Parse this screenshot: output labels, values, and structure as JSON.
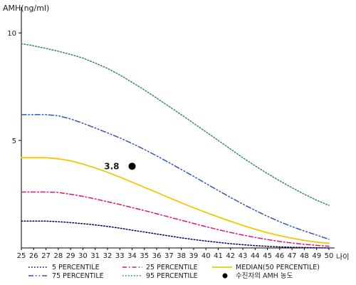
{
  "chart_data": {
    "type": "line",
    "ylabel": "AMH(ng/ml)",
    "xlabel": "나이",
    "x": [
      25,
      26,
      27,
      28,
      29,
      30,
      31,
      32,
      33,
      34,
      35,
      36,
      37,
      38,
      39,
      40,
      41,
      42,
      43,
      44,
      45,
      46,
      47,
      48,
      49,
      50
    ],
    "xlim": [
      25,
      50
    ],
    "ylim": [
      0,
      11.2
    ],
    "yticks": [
      5,
      10
    ],
    "grid": false,
    "legend_position": "bottom",
    "series": [
      {
        "name": "5 PERCENTILE",
        "color": "#000066",
        "dash": "dotted",
        "values": [
          1.25,
          1.25,
          1.25,
          1.22,
          1.18,
          1.13,
          1.07,
          1.0,
          0.92,
          0.83,
          0.74,
          0.65,
          0.56,
          0.47,
          0.39,
          0.32,
          0.26,
          0.2,
          0.15,
          0.11,
          0.08,
          0.05,
          0.03,
          0.02,
          0.01,
          0.0
        ]
      },
      {
        "name": "25 PERCENTILE",
        "color": "#e0147a",
        "dash": "dashdot",
        "values": [
          2.6,
          2.6,
          2.6,
          2.58,
          2.5,
          2.4,
          2.28,
          2.15,
          2.02,
          1.88,
          1.74,
          1.59,
          1.44,
          1.29,
          1.14,
          0.99,
          0.85,
          0.72,
          0.6,
          0.49,
          0.39,
          0.3,
          0.23,
          0.17,
          0.12,
          0.08
        ]
      },
      {
        "name": "MEDIAN(50 PERCENTILE)",
        "color": "#f0c800",
        "dash": "solid",
        "values": [
          4.2,
          4.2,
          4.2,
          4.15,
          4.05,
          3.9,
          3.72,
          3.52,
          3.3,
          3.06,
          2.82,
          2.58,
          2.34,
          2.1,
          1.87,
          1.65,
          1.44,
          1.24,
          1.05,
          0.87,
          0.71,
          0.57,
          0.45,
          0.35,
          0.27,
          0.22
        ]
      },
      {
        "name": "75 PERCENTILE",
        "color": "#3355bb",
        "dash": "dashdotdot",
        "values": [
          6.2,
          6.2,
          6.2,
          6.15,
          6.0,
          5.8,
          5.58,
          5.35,
          5.12,
          4.86,
          4.58,
          4.28,
          3.97,
          3.65,
          3.33,
          3.0,
          2.67,
          2.35,
          2.04,
          1.75,
          1.47,
          1.22,
          0.99,
          0.79,
          0.6,
          0.4
        ]
      },
      {
        "name": "95 PERCENTILE",
        "color": "#2e8b57",
        "dash": "dotted",
        "values": [
          9.5,
          9.4,
          9.28,
          9.15,
          9.0,
          8.83,
          8.6,
          8.35,
          8.05,
          7.7,
          7.35,
          6.97,
          6.58,
          6.2,
          5.8,
          5.4,
          5.0,
          4.6,
          4.2,
          3.82,
          3.46,
          3.12,
          2.8,
          2.5,
          2.22,
          1.98
        ]
      }
    ],
    "marker": {
      "name": "수진자의 AMH 농도",
      "x": 34,
      "y": 3.8,
      "label": "3.8"
    }
  }
}
